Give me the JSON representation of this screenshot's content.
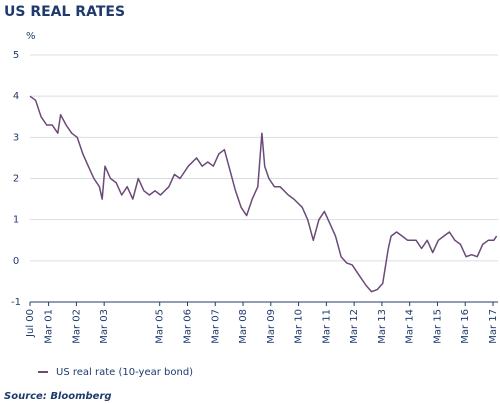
{
  "chart_data": {
    "type": "line",
    "title": "US REAL RATES",
    "ylabel": "%",
    "source": "Source: Bloomberg",
    "x": [
      2000.5,
      2000.7,
      2000.9,
      2001.1,
      2001.3,
      2001.5,
      2001.6,
      2001.8,
      2002.0,
      2002.2,
      2002.4,
      2002.6,
      2002.8,
      2003.0,
      2003.1,
      2003.2,
      2003.4,
      2003.6,
      2003.8,
      2004.0,
      2004.2,
      2004.4,
      2004.6,
      2004.8,
      2005.0,
      2005.2,
      2005.5,
      2005.7,
      2005.9,
      2006.2,
      2006.5,
      2006.7,
      2006.9,
      2007.1,
      2007.3,
      2007.5,
      2007.7,
      2007.9,
      2008.1,
      2008.3,
      2008.5,
      2008.7,
      2008.85,
      2008.95,
      2009.1,
      2009.3,
      2009.5,
      2009.8,
      2010.0,
      2010.3,
      2010.5,
      2010.7,
      2010.9,
      2011.1,
      2011.3,
      2011.5,
      2011.7,
      2011.9,
      2012.1,
      2012.3,
      2012.6,
      2012.8,
      2013.0,
      2013.2,
      2013.4,
      2013.5,
      2013.7,
      2013.9,
      2014.1,
      2014.4,
      2014.6,
      2014.8,
      2015.0,
      2015.2,
      2015.4,
      2015.6,
      2015.8,
      2016.0,
      2016.2,
      2016.4,
      2016.6,
      2016.8,
      2017.0,
      2017.2,
      2017.3
    ],
    "series": [
      {
        "name": "US real rate (10-year bond)",
        "color": "#6b4a7a",
        "values": [
          4.0,
          3.9,
          3.5,
          3.3,
          3.3,
          3.1,
          3.55,
          3.3,
          3.1,
          3.0,
          2.6,
          2.3,
          2.0,
          1.8,
          1.5,
          2.3,
          2.0,
          1.9,
          1.6,
          1.8,
          1.5,
          2.0,
          1.7,
          1.6,
          1.7,
          1.6,
          1.8,
          2.1,
          2.0,
          2.3,
          2.5,
          2.3,
          2.4,
          2.3,
          2.6,
          2.7,
          2.2,
          1.7,
          1.3,
          1.1,
          1.5,
          1.8,
          3.1,
          2.3,
          2.0,
          1.8,
          1.8,
          1.6,
          1.5,
          1.3,
          1.0,
          0.5,
          1.0,
          1.2,
          0.9,
          0.6,
          0.1,
          -0.05,
          -0.1,
          -0.3,
          -0.6,
          -0.75,
          -0.7,
          -0.55,
          0.3,
          0.6,
          0.7,
          0.6,
          0.5,
          0.5,
          0.3,
          0.5,
          0.2,
          0.5,
          0.6,
          0.7,
          0.5,
          0.4,
          0.1,
          0.15,
          0.1,
          0.4,
          0.5,
          0.5,
          0.6
        ]
      }
    ],
    "xlim": [
      2000.5,
      2017.35
    ],
    "xticks": [
      {
        "value": 2000.5,
        "label": "Jul 00"
      },
      {
        "value": 2001.17,
        "label": "Mar 01"
      },
      {
        "value": 2002.17,
        "label": "Mar 02"
      },
      {
        "value": 2003.17,
        "label": "Mar 03"
      },
      {
        "value": 2005.17,
        "label": "Mar 05"
      },
      {
        "value": 2006.17,
        "label": "Mar 06"
      },
      {
        "value": 2007.17,
        "label": "Mar 07"
      },
      {
        "value": 2008.17,
        "label": "Mar 08"
      },
      {
        "value": 2009.17,
        "label": "Mar 09"
      },
      {
        "value": 2010.17,
        "label": "Mar 10"
      },
      {
        "value": 2011.17,
        "label": "Mar 11"
      },
      {
        "value": 2012.17,
        "label": "Mar 12"
      },
      {
        "value": 2013.17,
        "label": "Mar 13"
      },
      {
        "value": 2014.17,
        "label": "Mar 14"
      },
      {
        "value": 2015.17,
        "label": "Mar 15"
      },
      {
        "value": 2016.17,
        "label": "Mar 16"
      },
      {
        "value": 2017.17,
        "label": "Mar 17"
      }
    ],
    "ylim": [
      -1,
      5
    ],
    "yticks": [
      -1,
      0,
      1,
      2,
      3,
      4,
      5
    ],
    "grid": true
  }
}
